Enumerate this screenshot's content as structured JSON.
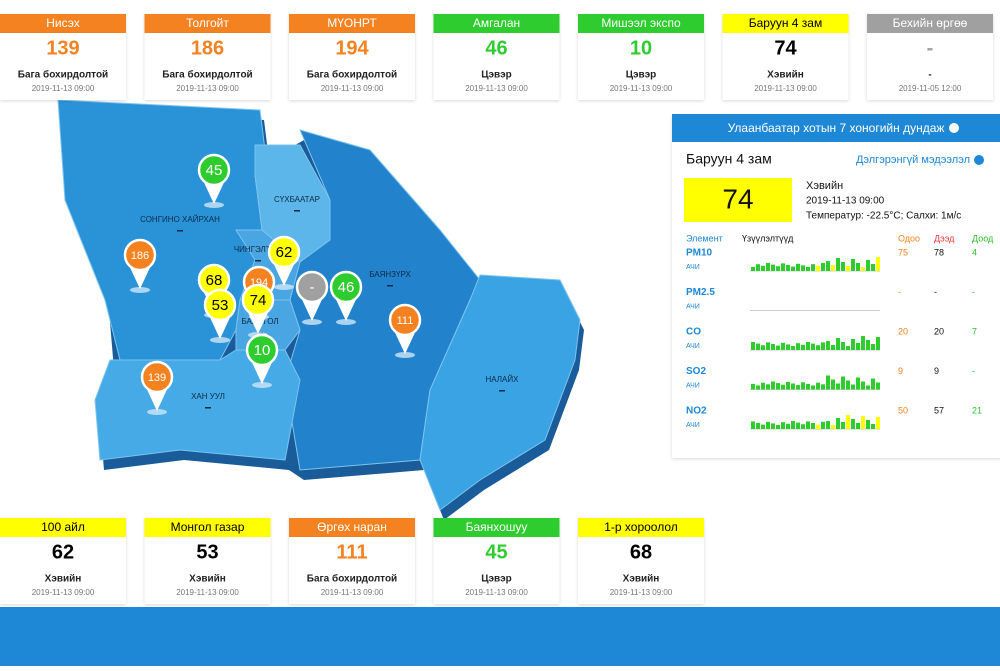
{
  "top_stations": [
    {
      "name": "Нисэх",
      "value": "139",
      "status": "Бага бохирдолтой",
      "date": "2019-11-13 09:00",
      "color": "#f58220"
    },
    {
      "name": "Толгойт",
      "value": "186",
      "status": "Бага бохирдолтой",
      "date": "2019-11-13 09:00",
      "color": "#f58220"
    },
    {
      "name": "МҮОНРТ",
      "value": "194",
      "status": "Бага бохирдолтой",
      "date": "2019-11-13 09:00",
      "color": "#f58220"
    },
    {
      "name": "Амгалан",
      "value": "46",
      "status": "Цэвэр",
      "date": "2019-11-13 09:00",
      "color": "#2fcc2f"
    },
    {
      "name": "Мишээл экспо",
      "value": "10",
      "status": "Цэвэр",
      "date": "2019-11-13 09:00",
      "color": "#2fcc2f"
    },
    {
      "name": "Баруун 4 зам",
      "value": "74",
      "status": "Хэвийн",
      "date": "2019-11-13 09:00",
      "color": "#ffff00"
    },
    {
      "name": "Бехийн өргөө",
      "value": "-",
      "status": "-",
      "date": "2019-11-05 12:00",
      "color": "#a0a0a0"
    }
  ],
  "bottom_stations": [
    {
      "name": "100 айл",
      "value": "62",
      "status": "Хэвийн",
      "date": "2019-11-13 09:00",
      "color": "#ffff00"
    },
    {
      "name": "Монгол газар",
      "value": "53",
      "status": "Хэвийн",
      "date": "2019-11-13 09:00",
      "color": "#ffff00"
    },
    {
      "name": "Өргөх наран",
      "value": "111",
      "status": "Бага бохирдолтой",
      "date": "2019-11-13 09:00",
      "color": "#f58220"
    },
    {
      "name": "Баянхошуу",
      "value": "45",
      "status": "Цэвэр",
      "date": "2019-11-13 09:00",
      "color": "#2fcc2f"
    },
    {
      "name": "1-р хороолол",
      "value": "68",
      "status": "Хэвийн",
      "date": "2019-11-13 09:00",
      "color": "#ffff00"
    }
  ],
  "map": {
    "districts": [
      "СОНГИНО ХАЙРХАН",
      "СҮХБААТАР",
      "ЧИНГЭЛТЭЙ",
      "БАЯНЗҮРХ",
      "БАЯНГОЛ",
      "ХАН УУЛ",
      "НАЛАЙХ"
    ],
    "pins": [
      {
        "value": "45",
        "color": "#2fcc2f"
      },
      {
        "value": "186",
        "color": "#f58220"
      },
      {
        "value": "62",
        "color": "#ffff00"
      },
      {
        "value": "68",
        "color": "#ffff00"
      },
      {
        "value": "194",
        "color": "#f58220"
      },
      {
        "value": "53",
        "color": "#ffff00"
      },
      {
        "value": "74",
        "color": "#ffff00"
      },
      {
        "value": "-",
        "color": "#a0a0a0"
      },
      {
        "value": "46",
        "color": "#2fcc2f"
      },
      {
        "value": "111",
        "color": "#f58220"
      },
      {
        "value": "10",
        "color": "#2fcc2f"
      },
      {
        "value": "139",
        "color": "#f58220"
      }
    ]
  },
  "panel": {
    "header": "Улаанбаатар хотын 7 хоногийн дундаж",
    "station": "Баруун 4 зам",
    "link": "Дэлгэрэнгүй мэдээлэл",
    "value": "74",
    "status": "Хэвийн",
    "date": "2019-11-13 09:00",
    "weather": "Температур: -22.5°C; Салхи: 1м/с",
    "columns": [
      "Элемент",
      "Үзүүлэлтүүд",
      "Одоо",
      "Дээд",
      "Доод"
    ],
    "rows": [
      {
        "element": "PM10",
        "unit": "АЧИ",
        "current": "75",
        "max": "78",
        "min": "4"
      },
      {
        "element": "PM2.5",
        "unit": "АЧИ",
        "current": "-",
        "max": "-",
        "min": "-"
      },
      {
        "element": "CO",
        "unit": "АЧИ",
        "current": "20",
        "max": "20",
        "min": "7"
      },
      {
        "element": "SO2",
        "unit": "АЧИ",
        "current": "9",
        "max": "9",
        "min": "-"
      },
      {
        "element": "NO2",
        "unit": "АЧИ",
        "current": "50",
        "max": "57",
        "min": "21"
      }
    ]
  }
}
